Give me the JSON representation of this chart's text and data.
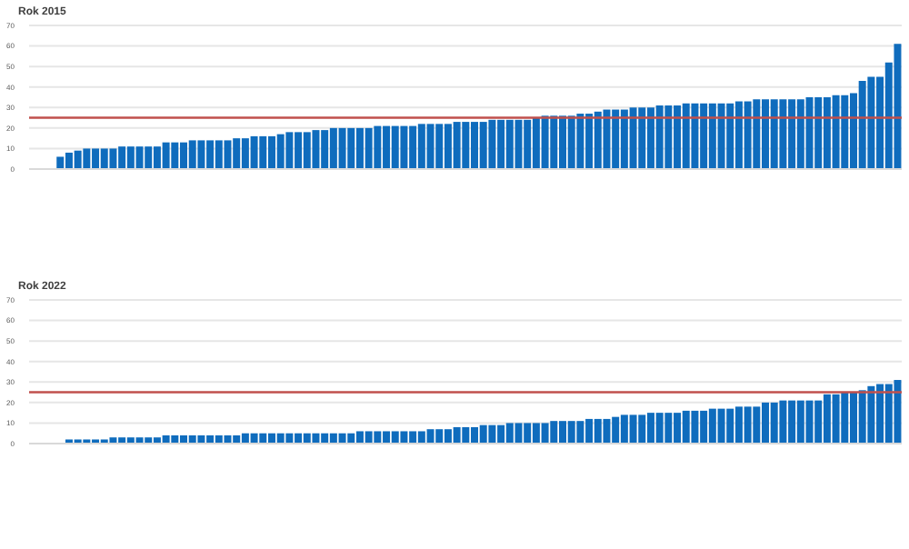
{
  "chart_data": [
    {
      "type": "bar",
      "title": "Rok 2015",
      "categories": [
        null,
        null,
        null,
        null,
        null,
        null,
        null,
        null,
        null,
        null,
        null,
        null,
        null,
        null,
        null,
        null,
        null,
        null,
        null,
        null,
        null,
        null,
        null,
        null,
        null,
        null,
        null,
        null,
        null,
        null,
        null,
        null,
        null,
        null,
        null,
        null,
        null,
        null,
        null,
        null,
        null,
        null,
        null,
        null,
        null,
        null,
        null,
        null,
        null,
        null,
        null,
        null,
        null,
        null,
        null,
        null,
        null,
        null,
        null,
        null,
        null,
        null,
        null,
        null,
        null,
        null,
        null,
        null,
        null,
        null,
        null,
        null,
        null,
        null,
        null,
        null,
        null,
        null,
        null,
        null,
        null,
        null,
        null,
        null,
        null,
        null,
        null,
        null,
        null,
        null,
        null,
        null,
        null,
        null,
        null,
        null,
        null,
        null,
        null
      ],
      "values": [
        0,
        0,
        0,
        6,
        8,
        9,
        10,
        10,
        10,
        10,
        11,
        11,
        11,
        11,
        11,
        13,
        13,
        13,
        14,
        14,
        14,
        14,
        14,
        15,
        15,
        16,
        16,
        16,
        17,
        18,
        18,
        18,
        19,
        19,
        20,
        20,
        20,
        20,
        20,
        21,
        21,
        21,
        21,
        21,
        22,
        22,
        22,
        22,
        23,
        23,
        23,
        23,
        24,
        24,
        24,
        24,
        24,
        25,
        26,
        26,
        26,
        26,
        27,
        27,
        28,
        29,
        29,
        29,
        30,
        30,
        30,
        31,
        31,
        31,
        32,
        32,
        32,
        32,
        32,
        32,
        33,
        33,
        34,
        34,
        34,
        34,
        34,
        34,
        35,
        35,
        35,
        36,
        36,
        37,
        43,
        45,
        45,
        52,
        61
      ],
      "color": "#0f6cbd",
      "ylim": [
        0,
        70
      ],
      "yticks": [
        0,
        10,
        20,
        30,
        40,
        50,
        60,
        70
      ],
      "grid": "y",
      "ref_lines": [
        {
          "axis": "y",
          "value": 25,
          "color": "#c0504d"
        }
      ]
    },
    {
      "type": "bar",
      "title": "Rok 2022",
      "categories": [
        null,
        null,
        null,
        null,
        null,
        null,
        null,
        null,
        null,
        null,
        null,
        null,
        null,
        null,
        null,
        null,
        null,
        null,
        null,
        null,
        null,
        null,
        null,
        null,
        null,
        null,
        null,
        null,
        null,
        null,
        null,
        null,
        null,
        null,
        null,
        null,
        null,
        null,
        null,
        null,
        null,
        null,
        null,
        null,
        null,
        null,
        null,
        null,
        null,
        null,
        null,
        null,
        null,
        null,
        null,
        null,
        null,
        null,
        null,
        null,
        null,
        null,
        null,
        null,
        null,
        null,
        null,
        null,
        null,
        null,
        null,
        null,
        null,
        null,
        null,
        null,
        null,
        null,
        null,
        null,
        null,
        null,
        null,
        null,
        null,
        null,
        null,
        null,
        null,
        null,
        null,
        null,
        null,
        null,
        null,
        null,
        null,
        null,
        null
      ],
      "values": [
        0,
        0,
        0,
        0,
        2,
        2,
        2,
        2,
        2,
        3,
        3,
        3,
        3,
        3,
        3,
        4,
        4,
        4,
        4,
        4,
        4,
        4,
        4,
        4,
        5,
        5,
        5,
        5,
        5,
        5,
        5,
        5,
        5,
        5,
        5,
        5,
        5,
        6,
        6,
        6,
        6,
        6,
        6,
        6,
        6,
        7,
        7,
        7,
        8,
        8,
        8,
        9,
        9,
        9,
        10,
        10,
        10,
        10,
        10,
        11,
        11,
        11,
        11,
        12,
        12,
        12,
        13,
        14,
        14,
        14,
        15,
        15,
        15,
        15,
        16,
        16,
        16,
        17,
        17,
        17,
        18,
        18,
        18,
        20,
        20,
        21,
        21,
        21,
        21,
        21,
        24,
        24,
        25,
        25,
        26,
        28,
        29,
        29,
        31
      ],
      "color": "#0f6cbd",
      "ylim": [
        0,
        70
      ],
      "yticks": [
        0,
        10,
        20,
        30,
        40,
        50,
        60,
        70
      ],
      "grid": "y",
      "ref_lines": [
        {
          "axis": "y",
          "value": 25,
          "color": "#c0504d"
        }
      ]
    }
  ]
}
